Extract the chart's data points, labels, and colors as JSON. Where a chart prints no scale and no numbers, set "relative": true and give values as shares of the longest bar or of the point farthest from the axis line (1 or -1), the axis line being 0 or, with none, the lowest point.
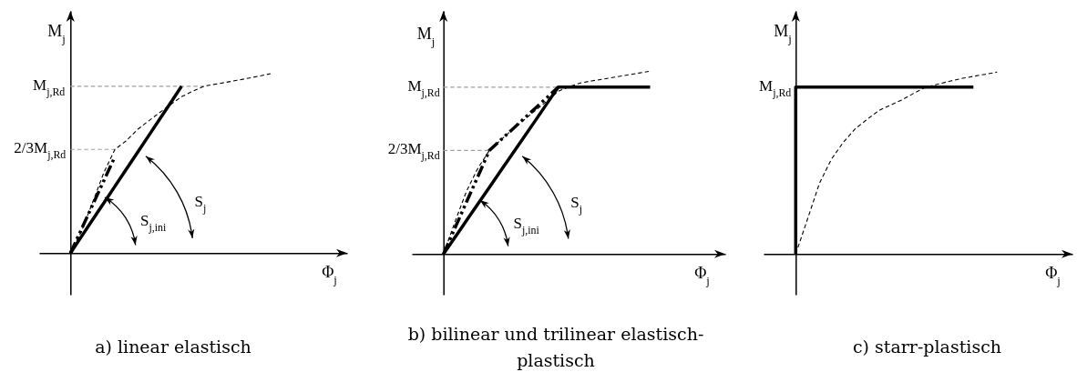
{
  "chart_data": [
    {
      "type": "line",
      "relative": true,
      "title": "a) linear elastisch",
      "xlabel": "Φ$_{j}$",
      "ylabel": "M$_{j}$",
      "categories": [
        null,
        null,
        null,
        null,
        null,
        null,
        null,
        null,
        null,
        null,
        null,
        null,
        null,
        null,
        null,
        null,
        null,
        null,
        null
      ],
      "series": [
        {
          "color": "#a0a0a0",
          "line_style": "dashed",
          "values": [
            0.93,
            0.93,
            0.93,
            0.93,
            0.93,
            0.93,
            0.93,
            0.93,
            0.93,
            0.93,
            0.93,
            0.93,
            0.93,
            null,
            null,
            null,
            null,
            null,
            null
          ]
        },
        {
          "color": "#a0a0a0",
          "line_style": "dashed",
          "values": [
            0.578,
            0.578,
            0.578,
            0.578,
            0.578,
            null,
            null,
            null,
            null,
            null,
            null,
            null,
            null,
            null,
            null,
            null,
            null,
            null,
            null
          ]
        },
        {
          "color": "#000000",
          "line_style": "dashed",
          "values": [
            0,
            0.122,
            0.283,
            0.448,
            0.578,
            0.625,
            0.687,
            0.735,
            0.782,
            0.828,
            0.872,
            0.902,
            0.93,
            0.941,
            0.952,
            0.963,
            0.975,
            0.987,
            1
          ]
        },
        {
          "color": "#000000",
          "line_style": "dashdot",
          "values": [
            0,
            0.134,
            0.269,
            0.403,
            0.537,
            null,
            null,
            null,
            null,
            null,
            null,
            null,
            null,
            null,
            null,
            null,
            null,
            null,
            null
          ]
        },
        {
          "color": "#000000",
          "line_style": "solid",
          "values": [
            0,
            0.093,
            0.186,
            0.279,
            0.372,
            0.465,
            0.558,
            0.651,
            0.744,
            0.837,
            0.93,
            null,
            null,
            null,
            null,
            null,
            null,
            null,
            null
          ]
        }
      ],
      "annotations": [
        "M$_{j,Rd}$",
        "2/3M$_{j,Rd}$",
        "S$_{j,ini}$",
        "S$_{j}$"
      ]
    },
    {
      "type": "line",
      "relative": true,
      "title": "b) bilinear und trilinear elastisch-plastisch",
      "xlabel": "Φ$_{j}$",
      "ylabel": "M$_{j}$",
      "categories": [
        null,
        null,
        null,
        null,
        null,
        null,
        null,
        null,
        null,
        null,
        null,
        null,
        null,
        null,
        null,
        null,
        null,
        null,
        null
      ],
      "series": [
        {
          "color": "#a0a0a0",
          "line_style": "dashed",
          "values": [
            0.913,
            0.913,
            0.913,
            0.913,
            0.913,
            0.913,
            0.913,
            0.913,
            0.913,
            0.913,
            0.913,
            null,
            null,
            null,
            null,
            null,
            null,
            null,
            null
          ]
        },
        {
          "color": "#a0a0a0",
          "line_style": "dashed",
          "values": [
            0.567,
            0.567,
            0.567,
            0.567,
            0.567,
            null,
            null,
            null,
            null,
            null,
            null,
            null,
            null,
            null,
            null,
            null,
            null,
            null,
            null
          ]
        },
        {
          "color": "#000000",
          "line_style": "dashed",
          "values": [
            0,
            0.176,
            0.343,
            0.47,
            0.567,
            0.625,
            0.681,
            0.733,
            0.785,
            0.837,
            0.89,
            0.917,
            0.937,
            0.948,
            0.958,
            0.969,
            0.979,
            0.99,
            1
          ]
        },
        {
          "color": "#000000",
          "line_style": "dashdot",
          "values": [
            0,
            0.142,
            0.284,
            0.425,
            0.567,
            0.625,
            0.682,
            0.74,
            0.798,
            0.855,
            0.913,
            null,
            null,
            null,
            null,
            null,
            null,
            null,
            null
          ]
        },
        {
          "color": "#000000",
          "line_style": "solid",
          "values": [
            0,
            0.091,
            0.183,
            0.274,
            0.365,
            0.457,
            0.548,
            0.639,
            0.73,
            0.822,
            0.913,
            0.913,
            0.913,
            0.913,
            0.913,
            0.913,
            0.913,
            0.913,
            0.913
          ]
        }
      ],
      "annotations": [
        "M$_{j,Rd}$",
        "2/3M$_{j,Rd}$",
        "S$_{j,ini}$",
        "S$_{j}$"
      ]
    },
    {
      "type": "line",
      "relative": true,
      "title": "c) starr-plastisch",
      "xlabel": "Φ$_{j}$",
      "ylabel": "M$_{j}$",
      "categories": [
        null,
        null,
        null,
        null,
        null,
        null,
        null,
        null,
        null,
        null,
        null,
        null,
        null,
        null,
        null,
        null,
        null,
        null
      ],
      "series": [
        {
          "color": "#000000",
          "line_style": "dashed",
          "values": [
            0,
            0.193,
            0.388,
            0.52,
            0.613,
            0.687,
            0.739,
            0.788,
            0.819,
            0.848,
            0.885,
            0.918,
            0.934,
            0.95,
            0.965,
            0.977,
            0.988,
            1
          ]
        },
        {
          "type": "step",
          "color": "#000000",
          "line_style": "solid",
          "values": [
            0,
            0.918,
            0.918,
            0.918,
            0.918,
            0.918,
            0.918,
            0.918,
            0.918,
            0.918,
            0.918,
            0.918,
            0.918,
            0.918,
            0.918,
            0.918,
            null,
            null
          ]
        }
      ],
      "annotations": [
        "M$_{j,Rd}$"
      ]
    }
  ]
}
